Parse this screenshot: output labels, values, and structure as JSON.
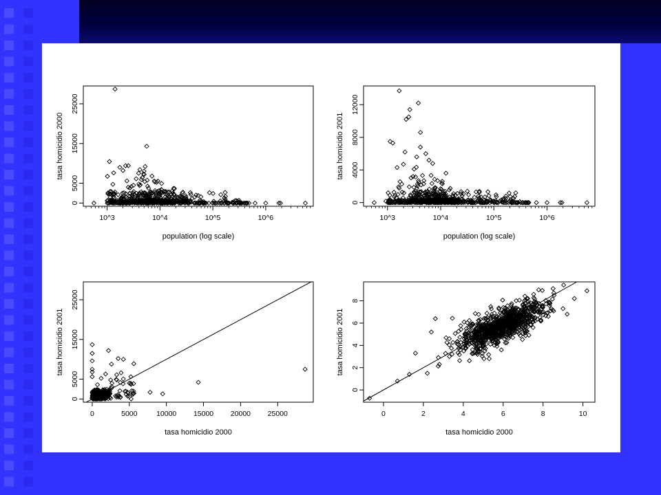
{
  "chart_data": [
    {
      "type": "scatter",
      "xlabel": "population (log scale)",
      "ylabel": "tasa homicidio 2000",
      "x_scale": "log10",
      "xlim": [
        2.55,
        6.9
      ],
      "ylim": [
        -800,
        29500
      ],
      "x_ticks": [
        3,
        4,
        5,
        6
      ],
      "x_tick_labels": [
        "10^3",
        "10^4",
        "10^5",
        "10^6"
      ],
      "y_ticks": [
        0,
        5000,
        15000,
        25000
      ],
      "y_tick_labels": [
        "0",
        "5000",
        "15000",
        "25000"
      ],
      "notable_points": [
        [
          3.15,
          28700
        ],
        [
          3.75,
          14300
        ],
        [
          3.24,
          9000
        ],
        [
          3.35,
          9400
        ],
        [
          2.75,
          0
        ],
        [
          6.75,
          0
        ]
      ],
      "series": []
    },
    {
      "type": "scatter",
      "xlabel": "population (log scale)",
      "ylabel": "tasa homicidio 2001",
      "x_scale": "log10",
      "xlim": [
        2.55,
        6.9
      ],
      "ylim": [
        -450,
        14300
      ],
      "x_ticks": [
        3,
        4,
        5,
        6
      ],
      "x_tick_labels": [
        "10^3",
        "10^4",
        "10^5",
        "10^6"
      ],
      "y_ticks": [
        0,
        4000,
        8000,
        12000
      ],
      "y_tick_labels": [
        "0",
        "4000",
        "8000",
        "12000"
      ],
      "notable_points": [
        [
          3.22,
          13700
        ],
        [
          3.58,
          12200
        ],
        [
          3.42,
          11400
        ],
        [
          3.4,
          10500
        ],
        [
          3.62,
          8600
        ],
        [
          3.05,
          7500
        ],
        [
          2.75,
          0
        ],
        [
          6.75,
          0
        ]
      ],
      "series": []
    },
    {
      "type": "scatter",
      "xlabel": "tasa homicidio 2000",
      "ylabel": "tasa homicidio 2001",
      "xlim": [
        -1200,
        29800
      ],
      "ylim": [
        -800,
        29500
      ],
      "x_ticks": [
        0,
        5000,
        10000,
        15000,
        20000,
        25000
      ],
      "x_tick_labels": [
        "0",
        "5000",
        "10000",
        "15000",
        "20000",
        "25000"
      ],
      "y_ticks": [
        0,
        5000,
        15000,
        25000
      ],
      "y_tick_labels": [
        "0",
        "5000",
        "15000",
        "25000"
      ],
      "reference_line": "y = x",
      "notable_points": [
        [
          28700,
          7500
        ],
        [
          14300,
          4200
        ],
        [
          9500,
          1300
        ],
        [
          7800,
          1700
        ],
        [
          2200,
          12200
        ],
        [
          0,
          13700
        ]
      ],
      "series": []
    },
    {
      "type": "scatter",
      "xlabel": "tasa homicidio 2000",
      "ylabel": "tasa homicidio 2001",
      "xlim": [
        -1.0,
        10.6
      ],
      "ylim": [
        -1.1,
        9.7
      ],
      "x_ticks": [
        0,
        2,
        4,
        6,
        8,
        10
      ],
      "x_tick_labels": [
        "0",
        "2",
        "4",
        "6",
        "8",
        "10"
      ],
      "y_ticks": [
        0,
        2,
        4,
        6,
        8
      ],
      "y_tick_labels": [
        "0",
        "2",
        "4",
        "6",
        "8"
      ],
      "reference_line": "y = x",
      "notable_points": [
        [
          -0.7,
          -0.75
        ],
        [
          10.2,
          8.9
        ],
        [
          0.7,
          0.8
        ],
        [
          5.3,
          2.8
        ],
        [
          2.6,
          6.4
        ]
      ],
      "series": []
    }
  ]
}
